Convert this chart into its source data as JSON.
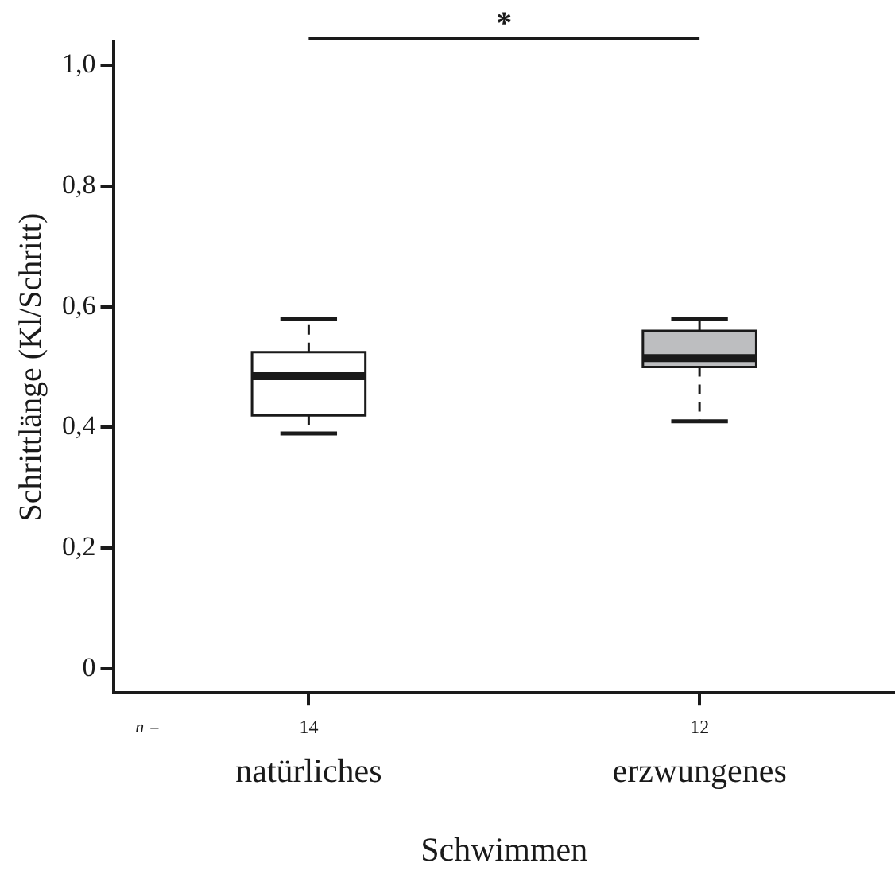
{
  "chart_data": {
    "type": "box",
    "ylabel": "Schrittlänge (Kl/Schritt)",
    "xlabel": "Schwimmen",
    "categories": [
      "natürliches",
      "erzwungenes"
    ],
    "colors": [
      "#ffffff",
      "#bdbec0"
    ],
    "boxes": [
      {
        "low": 0.39,
        "q1": 0.42,
        "median": 0.485,
        "q3": 0.525,
        "high": 0.58
      },
      {
        "low": 0.41,
        "q1": 0.5,
        "median": 0.515,
        "q3": 0.56,
        "high": 0.58
      }
    ],
    "ylim": [
      -0.04,
      1.04
    ],
    "yticks": [
      0,
      {
        "value": 0.2,
        "label": "0,2"
      },
      {
        "value": 0.4,
        "label": "0,4"
      },
      {
        "value": 0.6,
        "label": "0,6"
      },
      {
        "value": 0.8,
        "label": "0,8"
      },
      {
        "value": 1,
        "label": "1,0"
      }
    ],
    "grid": false,
    "legend": false,
    "line_style": "dashed",
    "annotations": [
      "*",
      "n =",
      "14",
      "12"
    ]
  }
}
